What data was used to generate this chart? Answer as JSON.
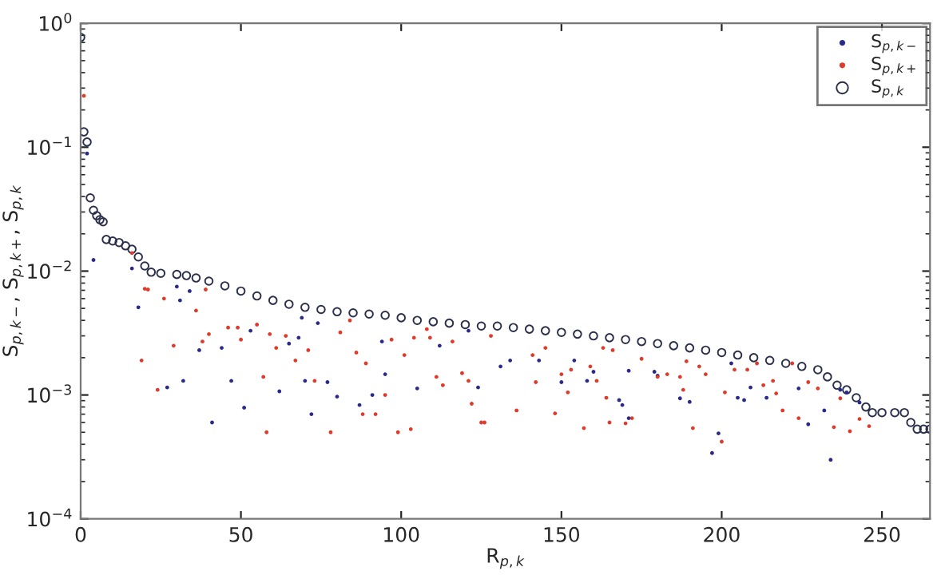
{
  "chart_data": {
    "type": "scatter",
    "xlabel": "R$_{p,k}$",
    "ylabel": "S$_{p,k−}$, S$_{p,k+}$, S$_{p,k}$",
    "log": "y",
    "xlim": [
      0,
      265
    ],
    "xticks": [
      0,
      50,
      100,
      150,
      200,
      250
    ],
    "ylim": [
      0.0001,
      1
    ],
    "yticks": [
      {
        "value": 0.0001,
        "label": "10$^{−4}$"
      },
      {
        "value": 0.001,
        "label": "10$^{−3}$"
      },
      {
        "value": 0.01,
        "label": "10$^{−2}$"
      },
      {
        "value": 0.1,
        "label": "10$^{−1}$"
      },
      {
        "value": 1,
        "label": "10$^{0}$"
      }
    ],
    "grid": false,
    "legend": "top right",
    "series": [
      {
        "name": "S$_{p,k−}$",
        "color": "#2a2a8c",
        "x": [
          2,
          4,
          16,
          18,
          27,
          30,
          31,
          32,
          34,
          37,
          41,
          44,
          47,
          51,
          53,
          62,
          65,
          68,
          69,
          70,
          72,
          74,
          77,
          80,
          87,
          91,
          94,
          95,
          105,
          112,
          121,
          124,
          131,
          134,
          143,
          150,
          154,
          158,
          160,
          168,
          169,
          171,
          171,
          179,
          180,
          187,
          190,
          197,
          199,
          203,
          205,
          207,
          209,
          214,
          224,
          227,
          232,
          234,
          237,
          239,
          243
        ],
        "values": [
          0.089,
          0.0123,
          0.0105,
          0.0051,
          0.00115,
          0.0075,
          0.0058,
          0.0013,
          0.0069,
          0.0023,
          0.0006,
          0.0024,
          0.0013,
          0.00079,
          0.0033,
          0.00107,
          0.0026,
          0.0029,
          0.0042,
          0.0013,
          0.0007,
          0.0038,
          0.00127,
          0.00097,
          0.00083,
          0.001,
          0.0027,
          0.00147,
          0.00113,
          0.0025,
          0.0033,
          0.00115,
          0.0017,
          0.0019,
          0.0019,
          0.00127,
          0.0019,
          0.0013,
          0.00154,
          0.00091,
          0.00083,
          0.00157,
          0.00065,
          0.00154,
          0.00143,
          0.00094,
          0.00088,
          0.00034,
          0.00049,
          0.0018,
          0.00095,
          0.00091,
          0.00115,
          0.00095,
          0.00113,
          0.00058,
          0.00075,
          0.0003,
          0.0011,
          0.00105,
          0.00087
        ]
      },
      {
        "name": "S$_{p,k+}$",
        "color": "#e03a2a",
        "x": [
          1,
          16,
          19,
          20,
          21,
          24,
          26,
          29,
          36,
          38,
          39,
          40,
          46,
          49,
          50,
          55,
          57,
          58,
          59,
          61,
          64,
          67,
          71,
          73,
          78,
          81,
          84,
          86,
          88,
          89,
          92,
          95,
          97,
          99,
          101,
          103,
          104,
          108,
          109,
          111,
          113,
          116,
          119,
          121,
          122,
          125,
          126,
          128,
          136,
          141,
          142,
          145,
          148,
          150,
          152,
          153,
          157,
          159,
          161,
          163,
          164,
          165,
          166,
          170,
          172,
          175,
          180,
          183,
          187,
          188,
          189,
          191,
          193,
          195,
          200,
          201,
          204,
          208,
          211,
          213,
          216,
          217,
          219,
          222,
          224,
          227,
          230,
          235,
          237,
          240,
          243,
          246
        ],
        "values": [
          0.26,
          0.014,
          0.0019,
          0.0072,
          0.0071,
          0.0011,
          0.006,
          0.0025,
          0.0048,
          0.0027,
          0.0071,
          0.0031,
          0.0035,
          0.0035,
          0.0028,
          0.0037,
          0.0014,
          0.0005,
          0.0031,
          0.0024,
          0.003,
          0.0019,
          0.0023,
          0.0013,
          0.0005,
          0.0032,
          0.004,
          0.0022,
          0.0007,
          0.0018,
          0.0007,
          0.001,
          0.0028,
          0.0005,
          0.0021,
          0.00053,
          0.0029,
          0.0034,
          0.0029,
          0.0014,
          0.0012,
          0.0027,
          0.0015,
          0.0013,
          0.00085,
          0.0006,
          0.0006,
          0.003,
          0.00075,
          0.0021,
          0.00127,
          0.0024,
          0.00071,
          0.00147,
          0.00105,
          0.0016,
          0.00054,
          0.0017,
          0.0013,
          0.0024,
          0.00095,
          0.0006,
          0.0023,
          0.00059,
          0.00065,
          0.00196,
          0.0014,
          0.00147,
          0.0014,
          0.0011,
          0.00187,
          0.00054,
          0.0017,
          0.00147,
          0.00042,
          0.00105,
          0.0016,
          0.0016,
          0.0018,
          0.0012,
          0.0013,
          0.00103,
          0.00075,
          0.0018,
          0.00065,
          0.00127,
          0.00113,
          0.00055,
          0.00094,
          0.00051,
          0.00064,
          0.00056
        ]
      },
      {
        "name": "S$_{p,k}$",
        "color": "#2b2f4a",
        "marker": "circle",
        "x": [
          0,
          1,
          2,
          3,
          4,
          5,
          6,
          7,
          8,
          10,
          12,
          14,
          16,
          18,
          20,
          22,
          25,
          30,
          33,
          36,
          40,
          45,
          50,
          55,
          60,
          65,
          70,
          75,
          80,
          85,
          90,
          95,
          100,
          105,
          110,
          115,
          120,
          125,
          130,
          135,
          140,
          145,
          150,
          155,
          160,
          165,
          170,
          175,
          180,
          185,
          190,
          195,
          200,
          205,
          210,
          215,
          220,
          225,
          230,
          233,
          236,
          239,
          242,
          245,
          247,
          250,
          254,
          257,
          259,
          261,
          263,
          265
        ],
        "values": [
          0.77,
          0.133,
          0.11,
          0.039,
          0.031,
          0.028,
          0.026,
          0.025,
          0.018,
          0.0175,
          0.017,
          0.016,
          0.015,
          0.013,
          0.011,
          0.0098,
          0.0096,
          0.0094,
          0.0092,
          0.0088,
          0.0083,
          0.0076,
          0.0069,
          0.0063,
          0.0058,
          0.0054,
          0.0051,
          0.0049,
          0.0047,
          0.0046,
          0.0045,
          0.0044,
          0.0042,
          0.004,
          0.0039,
          0.0038,
          0.0037,
          0.0036,
          0.0036,
          0.0035,
          0.0034,
          0.0033,
          0.0032,
          0.0031,
          0.003,
          0.0029,
          0.0028,
          0.0027,
          0.0026,
          0.0025,
          0.0024,
          0.0023,
          0.0022,
          0.0021,
          0.002,
          0.0019,
          0.0018,
          0.0017,
          0.0016,
          0.0014,
          0.0012,
          0.0011,
          0.00095,
          0.0008,
          0.00072,
          0.00072,
          0.00072,
          0.00072,
          0.0006,
          0.00053,
          0.00053,
          0.00053
        ]
      }
    ]
  }
}
